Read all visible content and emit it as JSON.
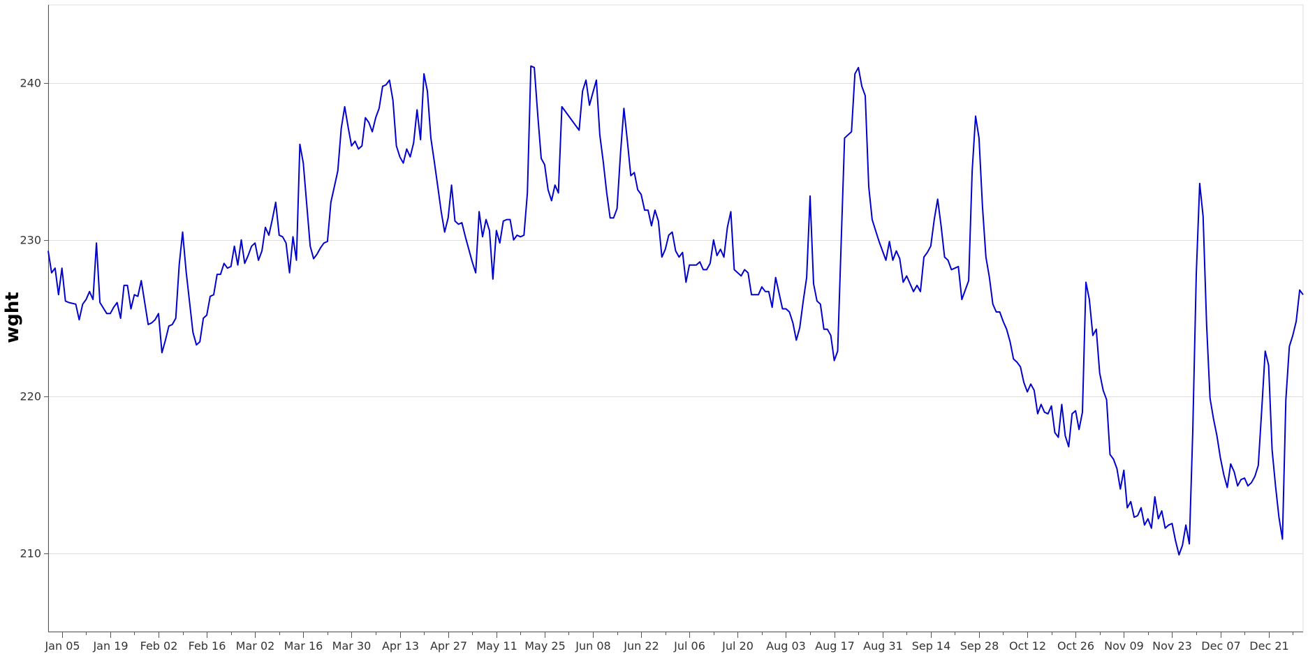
{
  "chart_data": {
    "type": "line",
    "title": "",
    "xlabel": "",
    "ylabel": "wght",
    "ylim": [
      205,
      245
    ],
    "xlim": [
      "2019-01-01",
      "2019-12-31"
    ],
    "grid": {
      "y": true,
      "x": false
    },
    "line_color": "#0000cc",
    "grid_color": "#dddddd",
    "y_ticks": [
      210,
      220,
      230,
      240
    ],
    "x_tick_dates": [
      "2019-01-05",
      "2019-01-19",
      "2019-02-02",
      "2019-02-16",
      "2019-03-02",
      "2019-03-16",
      "2019-03-30",
      "2019-04-13",
      "2019-04-27",
      "2019-05-11",
      "2019-05-25",
      "2019-06-08",
      "2019-06-22",
      "2019-07-06",
      "2019-07-20",
      "2019-08-03",
      "2019-08-17",
      "2019-08-31",
      "2019-09-14",
      "2019-09-28",
      "2019-10-12",
      "2019-10-26",
      "2019-11-09",
      "2019-11-23",
      "2019-12-07",
      "2019-12-21"
    ],
    "x_tick_labels": [
      "Jan 05",
      "Jan 19",
      "Feb 02",
      "Feb 16",
      "Mar 02",
      "Mar 16",
      "Mar 30",
      "Apr 13",
      "Apr 27",
      "May 11",
      "May 25",
      "Jun 08",
      "Jun 22",
      "Jul 06",
      "Jul 20",
      "Aug 03",
      "Aug 17",
      "Aug 31",
      "Sep 14",
      "Sep 28",
      "Oct 12",
      "Oct 26",
      "Nov 09",
      "Nov 23",
      "Dec 07",
      "Dec 21"
    ],
    "series": [
      {
        "x": [
          "2019-01-01",
          "2019-01-02",
          "2019-01-03",
          "2019-01-04",
          "2019-01-05",
          "2019-01-06",
          "2019-01-07",
          "2019-01-09",
          "2019-01-10",
          "2019-01-11",
          "2019-01-12",
          "2019-01-13",
          "2019-01-14",
          "2019-01-15",
          "2019-01-16",
          "2019-01-18",
          "2019-01-19",
          "2019-01-20",
          "2019-01-21",
          "2019-01-22",
          "2019-01-23",
          "2019-01-24",
          "2019-01-25",
          "2019-01-26",
          "2019-01-27",
          "2019-01-28",
          "2019-01-30",
          "2019-01-31",
          "2019-02-01",
          "2019-02-02",
          "2019-02-03",
          "2019-02-04",
          "2019-02-05",
          "2019-02-06",
          "2019-02-07",
          "2019-02-08",
          "2019-02-09",
          "2019-02-10",
          "2019-02-12",
          "2019-02-13",
          "2019-02-14",
          "2019-02-15",
          "2019-02-16",
          "2019-02-17",
          "2019-02-18",
          "2019-02-19",
          "2019-02-20",
          "2019-02-21",
          "2019-02-22",
          "2019-02-23",
          "2019-02-24",
          "2019-02-25",
          "2019-02-26",
          "2019-02-27",
          "2019-02-28",
          "2019-03-01",
          "2019-03-02",
          "2019-03-03",
          "2019-03-04",
          "2019-03-05",
          "2019-03-06",
          "2019-03-07",
          "2019-03-08",
          "2019-03-09",
          "2019-03-10",
          "2019-03-11",
          "2019-03-12",
          "2019-03-13",
          "2019-03-14",
          "2019-03-15",
          "2019-03-16",
          "2019-03-18",
          "2019-03-19",
          "2019-03-20",
          "2019-03-21",
          "2019-03-22",
          "2019-03-23",
          "2019-03-24",
          "2019-03-25",
          "2019-03-26",
          "2019-03-27",
          "2019-03-28",
          "2019-03-29",
          "2019-03-30",
          "2019-03-31",
          "2019-04-01",
          "2019-04-02",
          "2019-04-03",
          "2019-04-04",
          "2019-04-05",
          "2019-04-06",
          "2019-04-07",
          "2019-04-08",
          "2019-04-09",
          "2019-04-10",
          "2019-04-11",
          "2019-04-12",
          "2019-04-13",
          "2019-04-14",
          "2019-04-15",
          "2019-04-16",
          "2019-04-17",
          "2019-04-18",
          "2019-04-19",
          "2019-04-20",
          "2019-04-21",
          "2019-04-22",
          "2019-04-23",
          "2019-04-24",
          "2019-04-25",
          "2019-04-26",
          "2019-04-27",
          "2019-04-28",
          "2019-04-29",
          "2019-04-30",
          "2019-05-01",
          "2019-05-02",
          "2019-05-03",
          "2019-05-04",
          "2019-05-05",
          "2019-05-06",
          "2019-05-07",
          "2019-05-08",
          "2019-05-09",
          "2019-05-10",
          "2019-05-11",
          "2019-05-12",
          "2019-05-13",
          "2019-05-14",
          "2019-05-15",
          "2019-05-16",
          "2019-05-17",
          "2019-05-18",
          "2019-05-19",
          "2019-05-20",
          "2019-05-21",
          "2019-05-22",
          "2019-05-23",
          "2019-05-24",
          "2019-05-25",
          "2019-05-26",
          "2019-05-27",
          "2019-05-28",
          "2019-05-29",
          "2019-05-30",
          "2019-06-04",
          "2019-06-05",
          "2019-06-06",
          "2019-06-07",
          "2019-06-08",
          "2019-06-09",
          "2019-06-10",
          "2019-06-11",
          "2019-06-12",
          "2019-06-13",
          "2019-06-14",
          "2019-06-15",
          "2019-06-16",
          "2019-06-17",
          "2019-06-18",
          "2019-06-19",
          "2019-06-20",
          "2019-06-21",
          "2019-06-22",
          "2019-06-23",
          "2019-06-24",
          "2019-06-25",
          "2019-06-26",
          "2019-06-27",
          "2019-06-28",
          "2019-06-29",
          "2019-06-30",
          "2019-07-01",
          "2019-07-02",
          "2019-07-03",
          "2019-07-04",
          "2019-07-05",
          "2019-07-06",
          "2019-07-07",
          "2019-07-08",
          "2019-07-09",
          "2019-07-10",
          "2019-07-11",
          "2019-07-12",
          "2019-07-13",
          "2019-07-14",
          "2019-07-15",
          "2019-07-16",
          "2019-07-17",
          "2019-07-18",
          "2019-07-19",
          "2019-07-20",
          "2019-07-21",
          "2019-07-22",
          "2019-07-23",
          "2019-07-24",
          "2019-07-25",
          "2019-07-26",
          "2019-07-27",
          "2019-07-28",
          "2019-07-29",
          "2019-07-30",
          "2019-07-31",
          "2019-08-01",
          "2019-08-02",
          "2019-08-03",
          "2019-08-04",
          "2019-08-05",
          "2019-08-06",
          "2019-08-07",
          "2019-08-08",
          "2019-08-09",
          "2019-08-10",
          "2019-08-11",
          "2019-08-12",
          "2019-08-13",
          "2019-08-14",
          "2019-08-15",
          "2019-08-16",
          "2019-08-17",
          "2019-08-18",
          "2019-08-19",
          "2019-08-20",
          "2019-08-21",
          "2019-08-22",
          "2019-08-23",
          "2019-08-24",
          "2019-08-25",
          "2019-08-26",
          "2019-08-27",
          "2019-08-28",
          "2019-08-29",
          "2019-08-30",
          "2019-08-31",
          "2019-09-01",
          "2019-09-02",
          "2019-09-03",
          "2019-09-04",
          "2019-09-05",
          "2019-09-06",
          "2019-09-07",
          "2019-09-08",
          "2019-09-09",
          "2019-09-10",
          "2019-09-11",
          "2019-09-12",
          "2019-09-13",
          "2019-09-14",
          "2019-09-15",
          "2019-09-16",
          "2019-09-17",
          "2019-09-18",
          "2019-09-19",
          "2019-09-20",
          "2019-09-21",
          "2019-09-22",
          "2019-09-23",
          "2019-09-24",
          "2019-09-25",
          "2019-09-26",
          "2019-09-27",
          "2019-09-28",
          "2019-09-29",
          "2019-09-30",
          "2019-10-01",
          "2019-10-02",
          "2019-10-03",
          "2019-10-04",
          "2019-10-05",
          "2019-10-06",
          "2019-10-07",
          "2019-10-08",
          "2019-10-09",
          "2019-10-10",
          "2019-10-11",
          "2019-10-12",
          "2019-10-13",
          "2019-10-14",
          "2019-10-15",
          "2019-10-16",
          "2019-10-17",
          "2019-10-18",
          "2019-10-19",
          "2019-10-20",
          "2019-10-21",
          "2019-10-22",
          "2019-10-23",
          "2019-10-24",
          "2019-10-25",
          "2019-10-26",
          "2019-10-27",
          "2019-10-28",
          "2019-10-29",
          "2019-10-30",
          "2019-10-31",
          "2019-11-01",
          "2019-11-02",
          "2019-11-03",
          "2019-11-04",
          "2019-11-05",
          "2019-11-06",
          "2019-11-07",
          "2019-11-08",
          "2019-11-09",
          "2019-11-10",
          "2019-11-11",
          "2019-11-12",
          "2019-11-13",
          "2019-11-14",
          "2019-11-15",
          "2019-11-16",
          "2019-11-17",
          "2019-11-18",
          "2019-11-19",
          "2019-11-20",
          "2019-11-21",
          "2019-11-22",
          "2019-11-23",
          "2019-11-24",
          "2019-11-25",
          "2019-11-26",
          "2019-11-27",
          "2019-11-28",
          "2019-11-29",
          "2019-11-30",
          "2019-12-01",
          "2019-12-02",
          "2019-12-03",
          "2019-12-04",
          "2019-12-05",
          "2019-12-06",
          "2019-12-07",
          "2019-12-08",
          "2019-12-09",
          "2019-12-10",
          "2019-12-11",
          "2019-12-12",
          "2019-12-13",
          "2019-12-14",
          "2019-12-15",
          "2019-12-16",
          "2019-12-17",
          "2019-12-18",
          "2019-12-19",
          "2019-12-20",
          "2019-12-21",
          "2019-12-22",
          "2019-12-23",
          "2019-12-24",
          "2019-12-25",
          "2019-12-26",
          "2019-12-27",
          "2019-12-28",
          "2019-12-29",
          "2019-12-30",
          "2019-12-31"
        ],
        "y": [
          229.3,
          227.9,
          228.2,
          226.5,
          228.2,
          226.1,
          226,
          225.9,
          224.9,
          225.9,
          226.2,
          226.7,
          226.2,
          229.8,
          226,
          225.3,
          225.3,
          225.7,
          226,
          225,
          227.1,
          227.1,
          225.6,
          226.5,
          226.4,
          227.4,
          224.6,
          224.7,
          224.9,
          225.3,
          222.8,
          223.6,
          224.5,
          224.6,
          225,
          228.4,
          230.5,
          228,
          224.1,
          223.3,
          223.5,
          225,
          225.2,
          226.4,
          226.5,
          227.8,
          227.8,
          228.5,
          228.2,
          228.3,
          229.6,
          228.4,
          230,
          228.5,
          229,
          229.6,
          229.8,
          228.7,
          229.3,
          230.8,
          230.3,
          231.3,
          232.4,
          230.3,
          230.2,
          229.8,
          227.9,
          230.2,
          228.7,
          236.1,
          234.9,
          229.6,
          228.8,
          229.1,
          229.5,
          229.8,
          229.9,
          232.4,
          233.4,
          234.4,
          237.1,
          238.5,
          237.2,
          236,
          236.3,
          235.8,
          236,
          237.8,
          237.5,
          236.9,
          237.8,
          238.4,
          239.8,
          239.9,
          240.2,
          238.9,
          236,
          235.3,
          234.9,
          235.8,
          235.3,
          236.2,
          238.3,
          236.4,
          240.6,
          239.5,
          236.5,
          235,
          233.4,
          231.8,
          230.5,
          231.4,
          233.5,
          231.2,
          231,
          231.1,
          230.2,
          229.4,
          228.6,
          227.9,
          231.8,
          230.2,
          231.3,
          230.6,
          227.5,
          230.6,
          229.8,
          231.2,
          231.3,
          231.3,
          230,
          230.3,
          230.2,
          230.3,
          233,
          241.1,
          241,
          238,
          235.2,
          234.8,
          233.2,
          232.5,
          233.5,
          233,
          238.5,
          237,
          239.5,
          240.2,
          238.6,
          239.4,
          240.2,
          236.7,
          235,
          233,
          231.4,
          231.4,
          232,
          235.5,
          238.4,
          236.3,
          234.1,
          234.3,
          233.2,
          232.9,
          231.9,
          231.9,
          230.9,
          231.9,
          231.2,
          228.9,
          229.4,
          230.3,
          230.5,
          229.3,
          228.9,
          229.2,
          227.3,
          228.4,
          228.4,
          228.4,
          228.6,
          228.1,
          228.1,
          228.5,
          230,
          229,
          229.4,
          228.9,
          230.8,
          231.8,
          228.1,
          227.9,
          227.7,
          228.1,
          227.9,
          226.5,
          226.5,
          226.5,
          227,
          226.7,
          226.7,
          225.7,
          227.6,
          226.6,
          225.6,
          225.6,
          225.4,
          224.7,
          223.6,
          224.4,
          226.1,
          227.6,
          232.8,
          227.2,
          226.1,
          225.9,
          224.3,
          224.3,
          223.9,
          222.3,
          222.9,
          229.8,
          236.5,
          236.7,
          236.9,
          240.6,
          241,
          239.8,
          239.2,
          233.4,
          231.3,
          230.6,
          229.9,
          229.3,
          228.7,
          229.9,
          228.7,
          229.3,
          228.8,
          227.3,
          227.7,
          227.2,
          226.7,
          227.1,
          226.7,
          228.9,
          229.2,
          229.6,
          231.3,
          232.6,
          230.9,
          228.9,
          228.7,
          228.1,
          228.2,
          228.3,
          226.2,
          226.8,
          227.4,
          234.4,
          237.9,
          236.5,
          232.1,
          228.9,
          227.6,
          225.9,
          225.4,
          225.4,
          224.8,
          224.3,
          223.5,
          222.4,
          222.2,
          221.9,
          220.9,
          220.3,
          220.8,
          220.4,
          218.9,
          219.5,
          219,
          218.9,
          219.4,
          217.7,
          217.4,
          219.5,
          217.5,
          216.8,
          218.9,
          219.1,
          217.9,
          219,
          227.3,
          226.2,
          223.9,
          224.3,
          221.5,
          220.4,
          219.8,
          216.3,
          216,
          215.4,
          214.1,
          215.3,
          212.9,
          213.3,
          212.3,
          212.4,
          212.9,
          211.8,
          212.2,
          211.6,
          213.6,
          212.2,
          212.7,
          211.6,
          211.8,
          211.9,
          210.8,
          209.9,
          210.5,
          211.8,
          210.6,
          217.8,
          227.8,
          233.6,
          231.5,
          224.6,
          219.9,
          218.6,
          217.5,
          216.1,
          215,
          214.2,
          215.7,
          215.2,
          214.3,
          214.7,
          214.8,
          214.3,
          214.5,
          214.9,
          215.6,
          219.2,
          222.9,
          222,
          216.6,
          214.3,
          212.3,
          210.9,
          219.8,
          223.2,
          223.9,
          224.8,
          226.8,
          226.5
        ]
      }
    ]
  }
}
